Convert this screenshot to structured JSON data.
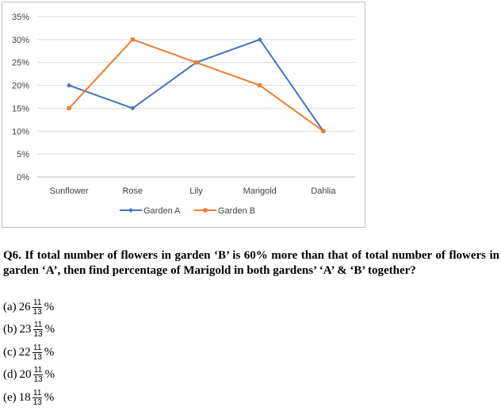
{
  "chart_data": {
    "type": "line",
    "categories": [
      "Sunflower",
      "Rose",
      "Lily",
      "Marigold",
      "Dahlia"
    ],
    "series": [
      {
        "name": "Garden A",
        "values": [
          20,
          15,
          25,
          30,
          10
        ],
        "color": "#4472c4",
        "marker": "diamond"
      },
      {
        "name": "Garden B",
        "values": [
          15,
          30,
          25,
          20,
          10
        ],
        "color": "#ed7d31",
        "marker": "square"
      }
    ],
    "ylim": [
      0,
      35
    ],
    "yticks": [
      "0%",
      "5%",
      "10%",
      "15%",
      "20%",
      "25%",
      "30%",
      "35%"
    ],
    "grid": true,
    "legend_position": "bottom"
  },
  "question": {
    "text": "Q6. If total number of flowers in garden ‘B’ is 60% more than that of total number of flowers in garden ‘A’, then find percentage of Marigold in both gardens’ ‘A’ & ‘B’ together?"
  },
  "options": [
    {
      "label": "(a)",
      "whole": "26",
      "num": "11",
      "den": "13",
      "unit": "%"
    },
    {
      "label": "(b)",
      "whole": "23",
      "num": "11",
      "den": "13",
      "unit": "%"
    },
    {
      "label": "(c)",
      "whole": "22",
      "num": "11",
      "den": "13",
      "unit": "%"
    },
    {
      "label": "(d)",
      "whole": "20",
      "num": "11",
      "den": "13",
      "unit": "%"
    },
    {
      "label": "(e)",
      "whole": "18",
      "num": "11",
      "den": "13",
      "unit": "%"
    }
  ]
}
